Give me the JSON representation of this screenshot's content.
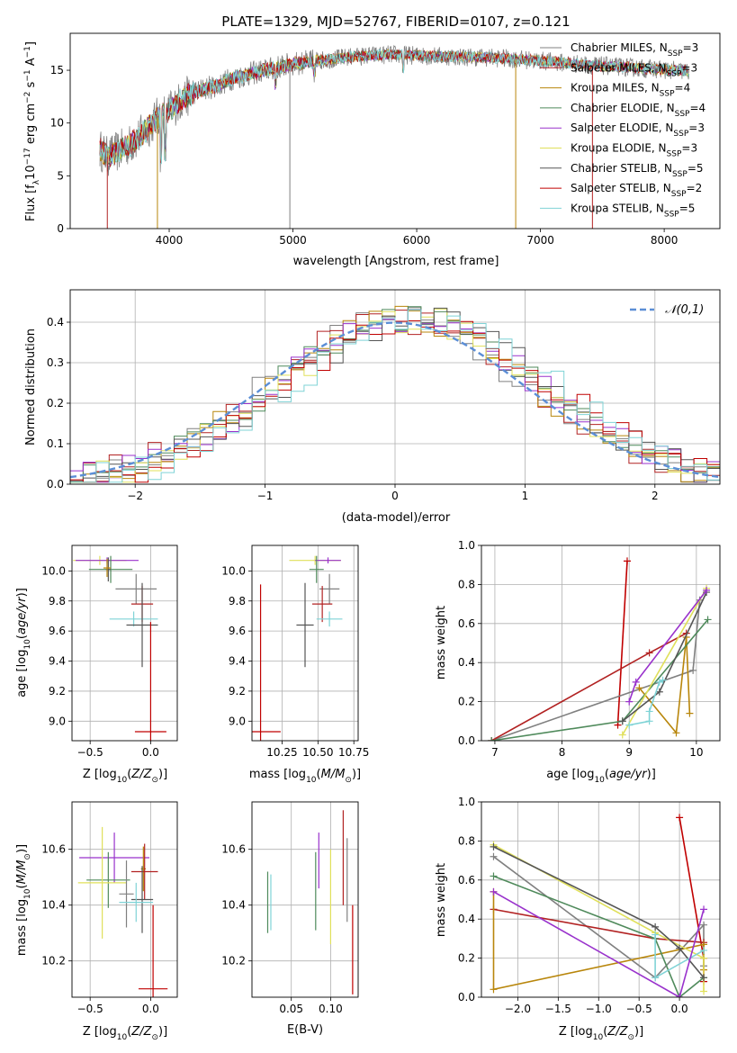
{
  "figure_title": "PLATE=1329, MJD=52767, FIBERID=0107, z=0.121",
  "models": [
    {
      "name": "Chabrier MILES",
      "nssp": "3",
      "color": "#808080"
    },
    {
      "name": "Salpeter MILES",
      "nssp": "3",
      "color": "#b22222"
    },
    {
      "name": "Kroupa MILES",
      "nssp": "4",
      "color": "#b8860b"
    },
    {
      "name": "Chabrier ELODIE",
      "nssp": "4",
      "color": "#4f8a5b"
    },
    {
      "name": "Salpeter ELODIE",
      "nssp": "3",
      "color": "#9932cc"
    },
    {
      "name": "Kroupa ELODIE",
      "nssp": "3",
      "color": "#e0e05a"
    },
    {
      "name": "Chabrier STELIB",
      "nssp": "5",
      "color": "#555555"
    },
    {
      "name": "Salpeter STELIB",
      "nssp": "2",
      "color": "#c00000"
    },
    {
      "name": "Kroupa STELIB",
      "nssp": "5",
      "color": "#7fd3d6"
    }
  ],
  "legend_nssp_label": "N",
  "legend_nssp_sub": "SSP",
  "chart_data": [
    {
      "id": "spectrum",
      "type": "line",
      "xlabel": "wavelength [Angstrom, rest frame]",
      "ylabel": "Flux [f",
      "ylabel_parts": [
        "Flux [f",
        "λ",
        "10",
        "−17",
        " erg cm",
        "−2",
        " s",
        "−1",
        " A",
        "−1",
        "]"
      ],
      "xlim": [
        3200,
        8450
      ],
      "ylim": [
        0,
        18.5
      ],
      "xticks": [
        4000,
        5000,
        6000,
        7000,
        8000
      ],
      "yticks": [
        0,
        5,
        10,
        15
      ],
      "grid": false,
      "legend_position": "top-right",
      "continuum": {
        "x": [
          3440,
          3500,
          3600,
          3700,
          3800,
          3900,
          4000,
          4100,
          4200,
          4300,
          4400,
          4500,
          4700,
          5000,
          5200,
          5500,
          5800,
          6000,
          6300,
          6600,
          7000,
          7400,
          7800,
          8200
        ],
        "y": [
          7.5,
          6.8,
          7.4,
          8.1,
          9.2,
          10.5,
          11.2,
          12.2,
          12.9,
          13.3,
          13.6,
          14.2,
          14.8,
          15.6,
          15.9,
          16.3,
          16.5,
          16.4,
          16.3,
          16.2,
          15.9,
          15.5,
          15.2,
          14.9
        ]
      },
      "spike_drops": [
        {
          "x": 3500,
          "series": "Salpeter MILES"
        },
        {
          "x": 3905,
          "series": "Kroupa MILES"
        },
        {
          "x": 4975,
          "series": "Chabrier MILES"
        },
        {
          "x": 6800,
          "series": "Kroupa MILES"
        },
        {
          "x": 7420,
          "series": "Salpeter MILES"
        }
      ]
    },
    {
      "id": "residuals",
      "type": "histogram",
      "xlabel": "(data-model)/error",
      "ylabel": "Normed distribution",
      "xlim": [
        -2.5,
        2.5
      ],
      "ylim": [
        0,
        0.48
      ],
      "xticks": [
        -2,
        -1,
        0,
        1,
        2
      ],
      "yticks": [
        0.0,
        0.1,
        0.2,
        0.3,
        0.4
      ],
      "grid": true,
      "legend_position": "top-right",
      "legend_entry": "𝒩(0,1)",
      "bin_edges": [
        -2.5,
        -2.4,
        -2.3,
        -2.2,
        -2.1,
        -2.0,
        -1.9,
        -1.8,
        -1.7,
        -1.6,
        -1.5,
        -1.4,
        -1.3,
        -1.2,
        -1.1,
        -1.0,
        -0.9,
        -0.8,
        -0.7,
        -0.6,
        -0.5,
        -0.4,
        -0.3,
        -0.2,
        -0.1,
        0.0,
        0.1,
        0.2,
        0.3,
        0.4,
        0.5,
        0.6,
        0.7,
        0.8,
        0.9,
        1.0,
        1.1,
        1.2,
        1.3,
        1.4,
        1.5,
        1.6,
        1.7,
        1.8,
        1.9,
        2.0,
        2.1,
        2.2,
        2.3,
        2.4,
        2.5
      ],
      "gaussian": {
        "mean": 0.0,
        "sigma": 1.0
      }
    },
    {
      "id": "age-vs-Z",
      "type": "errorbar",
      "xlabel": "Z [log",
      "xlabel_parts": [
        "Z [log",
        "10",
        "(Z/Z",
        "⊙",
        ")]"
      ],
      "ylabel_parts": [
        "age  [log",
        "10",
        "(age/yr)]"
      ],
      "xlim": [
        -0.65,
        0.22
      ],
      "ylim": [
        8.87,
        10.17
      ],
      "xticks": [
        -0.5,
        0.0
      ],
      "yticks": [
        9.0,
        9.2,
        9.4,
        9.6,
        9.8,
        10.0
      ],
      "grid": true,
      "points": [
        {
          "series": "Kroupa ELODIE",
          "x": -0.42,
          "xerr": 0.22,
          "y": 10.07,
          "yerr": 0.03
        },
        {
          "series": "Salpeter ELODIE",
          "x": -0.36,
          "xerr": 0.26,
          "y": 10.07,
          "yerr": 0.02
        },
        {
          "series": "Chabrier ELODIE",
          "x": -0.33,
          "xerr": 0.18,
          "y": 10.01,
          "yerr": 0.09
        },
        {
          "series": "Chabrier STELIB",
          "x": -0.35,
          "xerr": 0.02,
          "y": 10.01,
          "yerr": 0.08
        },
        {
          "series": "Kroupa MILES",
          "x": -0.36,
          "xerr": 0.03,
          "y": 10.02,
          "yerr": 0.06
        },
        {
          "series": "Chabrier MILES",
          "x": -0.12,
          "xerr": 0.17,
          "y": 9.88,
          "yerr": 0.1
        },
        {
          "series": "Salpeter MILES",
          "x": -0.07,
          "xerr": 0.09,
          "y": 9.78,
          "yerr": 0.12
        },
        {
          "series": "Kroupa STELIB",
          "x": -0.14,
          "xerr": 0.2,
          "y": 9.68,
          "yerr": 0.05
        },
        {
          "series": "Chabrier STELIB",
          "x": -0.07,
          "xerr": 0.13,
          "y": 9.64,
          "yerr": 0.28
        },
        {
          "series": "Salpeter STELIB",
          "x": 0.0,
          "xerr": 0.13,
          "y": 8.93,
          "yerr": 0.73
        }
      ]
    },
    {
      "id": "age-vs-mass",
      "type": "errorbar",
      "xlabel_parts": [
        "mass [log",
        "10",
        "(M/M",
        "⊙",
        ")]"
      ],
      "ylabel_parts": [],
      "xlim": [
        10.04,
        10.78
      ],
      "ylim": [
        8.87,
        10.17
      ],
      "xticks": [
        10.25,
        10.5,
        10.75
      ],
      "yticks": [
        9.0,
        9.2,
        9.4,
        9.6,
        9.8,
        10.0
      ],
      "grid": true,
      "points": [
        {
          "series": "Kroupa ELODIE",
          "x": 10.48,
          "xerr": 0.18,
          "y": 10.07,
          "yerr": 0.03
        },
        {
          "series": "Salpeter ELODIE",
          "x": 10.57,
          "xerr": 0.09,
          "y": 10.07,
          "yerr": 0.02
        },
        {
          "series": "Chabrier ELODIE",
          "x": 10.49,
          "xerr": 0.05,
          "y": 10.01,
          "yerr": 0.09
        },
        {
          "series": "Chabrier MILES",
          "x": 10.58,
          "xerr": 0.07,
          "y": 9.88,
          "yerr": 0.1
        },
        {
          "series": "Salpeter MILES",
          "x": 10.53,
          "xerr": 0.07,
          "y": 9.78,
          "yerr": 0.12
        },
        {
          "series": "Kroupa STELIB",
          "x": 10.58,
          "xerr": 0.09,
          "y": 9.68,
          "yerr": 0.05
        },
        {
          "series": "Chabrier STELIB",
          "x": 10.41,
          "xerr": 0.06,
          "y": 9.64,
          "yerr": 0.28
        },
        {
          "series": "Salpeter STELIB",
          "x": 10.1,
          "xerr": 0.14,
          "y": 8.93,
          "yerr": 0.98
        }
      ]
    },
    {
      "id": "weight-vs-age",
      "type": "line",
      "xlabel_parts": [
        "age  [log",
        "10",
        "(age/yr)]"
      ],
      "ylabel": "mass weight",
      "xlim": [
        6.8,
        10.35
      ],
      "ylim": [
        0.0,
        1.0
      ],
      "xticks": [
        7,
        8,
        9,
        10
      ],
      "yticks": [
        0.0,
        0.2,
        0.4,
        0.6,
        0.8,
        1.0
      ],
      "grid": true,
      "series": [
        {
          "series": "Salpeter STELIB",
          "x": [
            8.83,
            8.97
          ],
          "y": [
            0.08,
            0.92
          ]
        },
        {
          "series": "Chabrier MILES",
          "x": [
            6.95,
            9.95,
            10.05
          ],
          "y": [
            0.0,
            0.36,
            0.72
          ]
        },
        {
          "series": "Salpeter MILES",
          "x": [
            6.95,
            9.3,
            9.85
          ],
          "y": [
            0.0,
            0.45,
            0.55
          ]
        },
        {
          "series": "Kroupa MILES",
          "x": [
            9.15,
            9.7,
            9.85,
            9.9
          ],
          "y": [
            0.27,
            0.04,
            0.53,
            0.14
          ]
        },
        {
          "series": "Chabrier ELODIE",
          "x": [
            6.95,
            8.9,
            10.17
          ],
          "y": [
            0.0,
            0.1,
            0.62
          ]
        },
        {
          "series": "Kroupa ELODIE",
          "x": [
            8.9,
            10.15
          ],
          "y": [
            0.03,
            0.78
          ]
        },
        {
          "series": "Chabrier STELIB",
          "x": [
            8.9,
            9.45,
            10.15
          ],
          "y": [
            0.1,
            0.25,
            0.76
          ]
        },
        {
          "series": "Kroupa STELIB",
          "x": [
            9.0,
            9.3,
            9.3,
            9.45,
            9.5
          ],
          "y": [
            0.08,
            0.1,
            0.15,
            0.3,
            0.31
          ]
        },
        {
          "series": "Salpeter ELODIE",
          "x": [
            9.0,
            9.1,
            10.15
          ],
          "y": [
            0.2,
            0.3,
            0.77
          ]
        }
      ]
    },
    {
      "id": "mass-vs-Z",
      "type": "errorbar",
      "xlabel_parts": [
        "Z [log",
        "10",
        "(Z/Z",
        "⊙",
        ")]"
      ],
      "ylabel_parts": [
        "mass [log",
        "10",
        "(M/M",
        "⊙",
        ")]"
      ],
      "xlim": [
        -0.65,
        0.22
      ],
      "ylim": [
        10.07,
        10.77
      ],
      "xticks": [
        -0.5,
        0.0
      ],
      "yticks": [
        10.2,
        10.4,
        10.6
      ],
      "grid": true,
      "points": [
        {
          "series": "Salpeter ELODIE",
          "x": -0.3,
          "xerr": 0.29,
          "y": 10.57,
          "yerr": 0.09
        },
        {
          "series": "Kroupa MILES",
          "x": -0.06,
          "xerr": 0.02,
          "y": 10.53,
          "yerr": 0.08
        },
        {
          "series": "Salpeter MILES",
          "x": -0.05,
          "xerr": 0.11,
          "y": 10.52,
          "yerr": 0.1
        },
        {
          "series": "Chabrier ELODIE",
          "x": -0.35,
          "xerr": 0.18,
          "y": 10.49,
          "yerr": 0.1
        },
        {
          "series": "Kroupa ELODIE",
          "x": -0.4,
          "xerr": 0.2,
          "y": 10.48,
          "yerr": 0.2
        },
        {
          "series": "Chabrier MILES",
          "x": -0.2,
          "xerr": 0.06,
          "y": 10.44,
          "yerr": 0.12
        },
        {
          "series": "Chabrier STELIB",
          "x": -0.07,
          "xerr": 0.09,
          "y": 10.42,
          "yerr": 0.12
        },
        {
          "series": "Kroupa STELIB",
          "x": -0.12,
          "xerr": 0.14,
          "y": 10.41,
          "yerr": 0.07
        },
        {
          "series": "Salpeter STELIB",
          "x": 0.02,
          "xerr": 0.12,
          "y": 10.1,
          "yerr": 0.3
        }
      ]
    },
    {
      "id": "mass-vs-ebv",
      "type": "errorbar",
      "xlabel": "E(B-V)",
      "ylabel_parts": [],
      "xlim": [
        0.0,
        0.135
      ],
      "ylim": [
        10.07,
        10.77
      ],
      "xticks": [
        0.05,
        0.1
      ],
      "yticks": [
        10.2,
        10.4,
        10.6
      ],
      "grid": true,
      "points": [
        {
          "series": "Chabrier ELODIE",
          "x": 0.02,
          "xerr": 0.0,
          "y": 10.41,
          "yerr": 0.11
        },
        {
          "series": "Kroupa STELIB",
          "x": 0.024,
          "xerr": 0.0,
          "y": 10.41,
          "yerr": 0.1
        },
        {
          "series": "Chabrier ELODIE",
          "x": 0.081,
          "xerr": 0.0,
          "y": 10.45,
          "yerr": 0.14
        },
        {
          "series": "Salpeter ELODIE",
          "x": 0.085,
          "xerr": 0.0,
          "y": 10.56,
          "yerr": 0.1
        },
        {
          "series": "Kroupa ELODIE",
          "x": 0.1,
          "xerr": 0.0,
          "y": 10.43,
          "yerr": 0.17
        },
        {
          "series": "Salpeter MILES",
          "x": 0.116,
          "xerr": 0.0,
          "y": 10.57,
          "yerr": 0.17
        },
        {
          "series": "Chabrier MILES",
          "x": 0.121,
          "xerr": 0.0,
          "y": 10.49,
          "yerr": 0.15
        },
        {
          "series": "Salpeter STELIB",
          "x": 0.128,
          "xerr": 0.0,
          "y": 10.24,
          "yerr": 0.16
        }
      ]
    },
    {
      "id": "weight-vs-Z",
      "type": "line",
      "xlabel_parts": [
        "Z [log",
        "10",
        "(Z/Z",
        "⊙",
        ")]"
      ],
      "ylabel": "mass weight",
      "xlim": [
        -2.45,
        0.5
      ],
      "ylim": [
        0.0,
        1.0
      ],
      "xticks": [
        -2.0,
        -1.5,
        -1.0,
        -0.5,
        0.0
      ],
      "yticks": [
        0.0,
        0.2,
        0.4,
        0.6,
        0.8,
        1.0
      ],
      "grid": true,
      "series": [
        {
          "series": "Salpeter STELIB",
          "x": [
            0.0,
            0.3,
            0.3
          ],
          "y": [
            0.92,
            0.2,
            0.08
          ]
        },
        {
          "series": "Chabrier MILES",
          "x": [
            -2.3,
            -0.3,
            0.3,
            0.3
          ],
          "y": [
            0.72,
            0.1,
            0.37,
            0.16
          ]
        },
        {
          "series": "Salpeter MILES",
          "x": [
            -2.3,
            -0.3,
            0.3
          ],
          "y": [
            0.45,
            0.3,
            0.28
          ]
        },
        {
          "series": "Kroupa MILES",
          "x": [
            -2.3,
            -2.3,
            0.3,
            0.3
          ],
          "y": [
            0.54,
            0.04,
            0.27,
            0.14
          ]
        },
        {
          "series": "Chabrier ELODIE",
          "x": [
            -2.3,
            -0.3,
            0.0,
            0.3
          ],
          "y": [
            0.62,
            0.3,
            0.0,
            0.1
          ]
        },
        {
          "series": "Kroupa ELODIE",
          "x": [
            -2.3,
            -0.3,
            0.3,
            0.3
          ],
          "y": [
            0.78,
            0.33,
            0.2,
            0.03
          ]
        },
        {
          "series": "Chabrier STELIB",
          "x": [
            -2.3,
            -0.3,
            0.0,
            0.3
          ],
          "y": [
            0.77,
            0.36,
            0.25,
            0.1
          ]
        },
        {
          "series": "Kroupa STELIB",
          "x": [
            -0.3,
            -0.3,
            0.3
          ],
          "y": [
            0.32,
            0.1,
            0.24
          ]
        },
        {
          "series": "Salpeter ELODIE",
          "x": [
            -2.3,
            0.0,
            0.3
          ],
          "y": [
            0.54,
            0.0,
            0.45
          ]
        }
      ]
    }
  ]
}
